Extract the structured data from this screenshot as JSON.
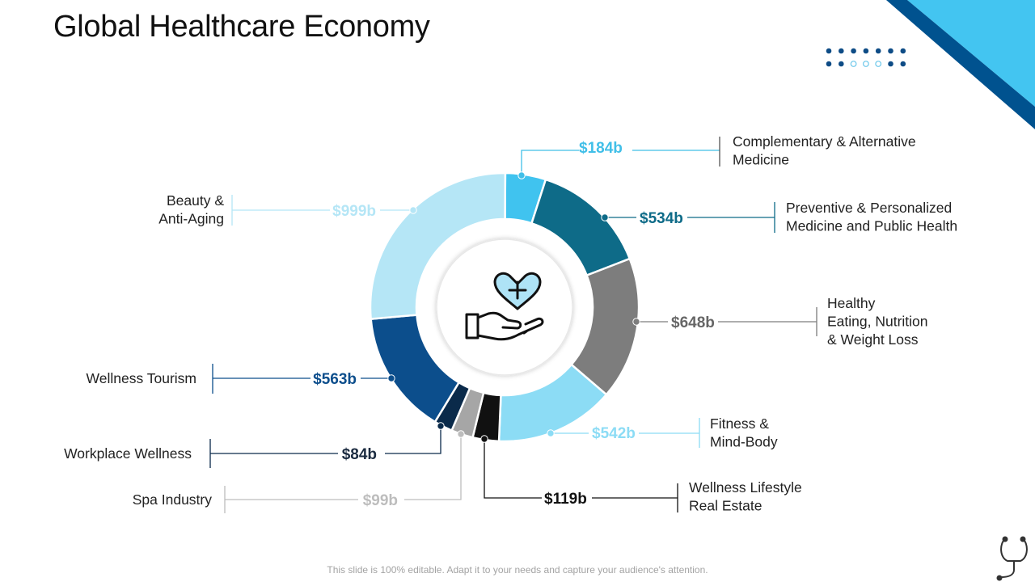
{
  "slide": {
    "title": "Global Healthcare Economy",
    "footer": "This slide is 100% editable. Adapt it to your needs and capture your audience's attention."
  },
  "center_icon": "heart-in-hand-icon",
  "decor": {
    "corner_colors": [
      "#43c5f1",
      "#00528f"
    ],
    "dot_colors": [
      "#0e4c86",
      "#6cc7ea"
    ]
  },
  "chart_data": {
    "type": "pie",
    "variant": "donut",
    "title": "Global Healthcare Economy",
    "unit": "$ billions",
    "slices": [
      {
        "label": "Complementary & Alternative Medicine",
        "value": 184,
        "display": "$184b",
        "color": "#40c3ef"
      },
      {
        "label": "Preventive & Personalized Medicine and Public Health",
        "value": 534,
        "display": "$534b",
        "color": "#0e6b88"
      },
      {
        "label": "Healthy Eating, Nutrition & Weight Loss",
        "value": 648,
        "display": "$648b",
        "color": "#7d7d7d"
      },
      {
        "label": "Fitness & Mind-Body",
        "value": 542,
        "display": "$542b",
        "color": "#8cdcf5"
      },
      {
        "label": "Wellness Lifestyle Real Estate",
        "value": 119,
        "display": "$119b",
        "color": "#111111"
      },
      {
        "label": "Spa Industry",
        "value": 99,
        "display": "$99b",
        "color": "#a6a6a6"
      },
      {
        "label": "Workplace Wellness",
        "value": 84,
        "display": "$84b",
        "color": "#0a2a4a"
      },
      {
        "label": "Wellness Tourism",
        "value": 563,
        "display": "$563b",
        "color": "#0c4e8c"
      },
      {
        "label": "Beauty & Anti-Aging",
        "value": 999,
        "display": "$999b",
        "color": "#b5e6f6"
      }
    ],
    "label_lines": [
      [
        "Complementary & Alternative",
        "Medicine"
      ],
      [
        "Preventive & Personalized",
        "Medicine and Public Health"
      ],
      [
        "Healthy",
        "Eating, Nutrition",
        "& Weight Loss"
      ],
      [
        "Fitness &",
        "Mind-Body"
      ],
      [
        "Wellness Lifestyle",
        "Real Estate"
      ],
      [
        "Spa Industry"
      ],
      [
        "Workplace Wellness"
      ],
      [
        "Wellness Tourism"
      ],
      [
        "Beauty &",
        "Anti-Aging"
      ]
    ]
  }
}
